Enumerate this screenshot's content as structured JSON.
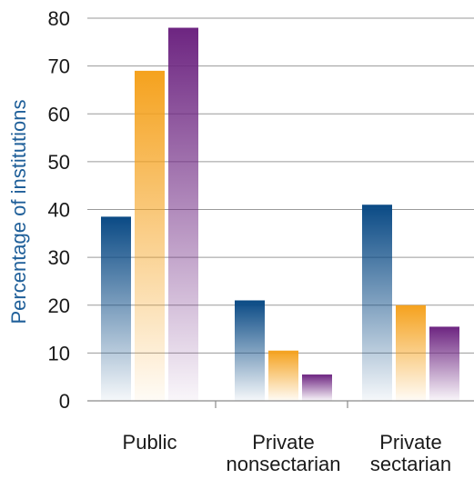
{
  "chart_data": {
    "type": "bar",
    "categories": [
      [
        "Public"
      ],
      [
        "Private",
        "nonsectarian"
      ],
      [
        "Private",
        "sectarian"
      ]
    ],
    "series": [
      {
        "values": [
          38.5,
          21,
          41
        ],
        "color": "#0a4a85"
      },
      {
        "values": [
          69,
          10.5,
          20
        ],
        "color": "#f5a21e"
      },
      {
        "values": [
          78,
          5.5,
          15.5
        ],
        "color": "#6d2581"
      }
    ],
    "ylabel": "Percentage of institutions",
    "xlabel": "",
    "ylim": [
      0,
      80
    ],
    "yticks": [
      0,
      10,
      20,
      30,
      40,
      50,
      60,
      70,
      80
    ],
    "grid": true
  }
}
